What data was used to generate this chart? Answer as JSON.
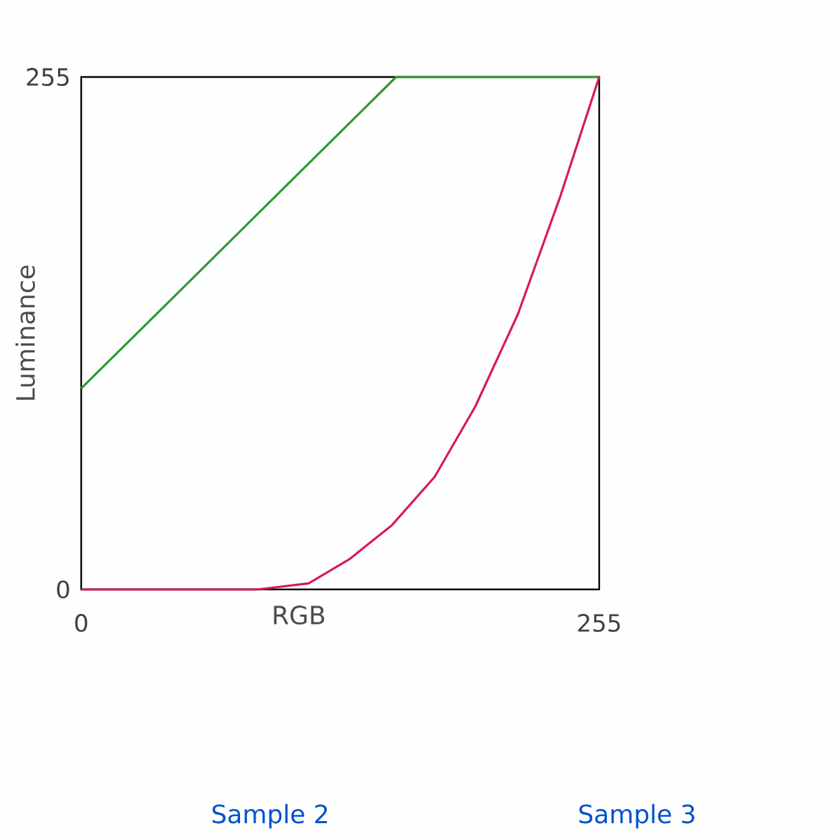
{
  "chart_data": {
    "type": "line",
    "xlabel": "RGB",
    "ylabel": "Luminance",
    "xlim": [
      0,
      255
    ],
    "ylim": [
      0,
      255
    ],
    "xticks": [
      0,
      255
    ],
    "yticks": [
      0,
      255
    ],
    "marker": "none",
    "line_style": "solid",
    "annotations": [
      "Sample 2",
      "Sample 3"
    ],
    "series": [
      {
        "color": "#2e9a2e",
        "x": [
          0,
          155,
          255
        ],
        "values": [
          100,
          255,
          255
        ]
      },
      {
        "color": "#d81b50",
        "x": [
          0,
          87,
          112,
          132,
          153,
          174,
          194,
          215,
          236,
          255
        ],
        "values": [
          0,
          0,
          3,
          15,
          32,
          56,
          91,
          137,
          196,
          255
        ]
      }
    ]
  }
}
